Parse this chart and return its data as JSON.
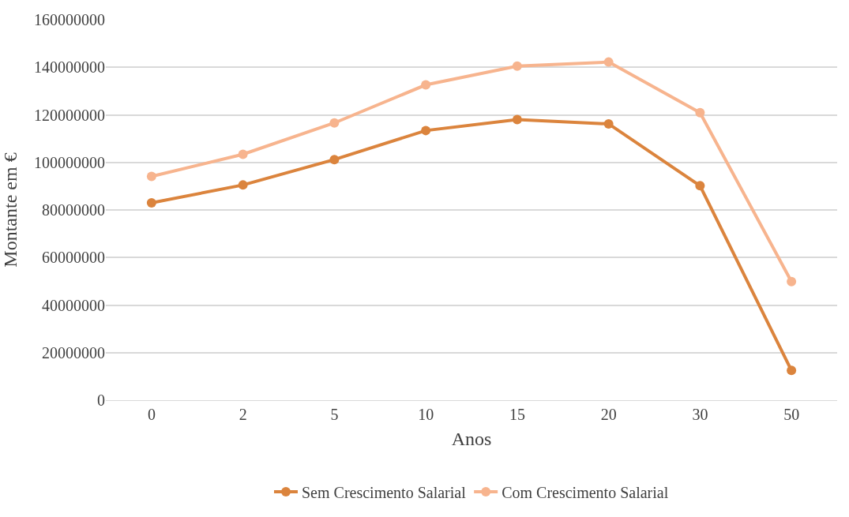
{
  "chart_data": {
    "type": "line",
    "xlabel": "Anos",
    "ylabel": "Montante em €",
    "categories": [
      "0",
      "2",
      "5",
      "10",
      "15",
      "20",
      "30",
      "50"
    ],
    "series": [
      {
        "name": "Sem Crescimento Salarial",
        "color": "#db843d",
        "values": [
          83000000,
          90500000,
          101200000,
          113400000,
          118000000,
          116200000,
          90200000,
          12500000
        ]
      },
      {
        "name": "Com Crescimento Salarial",
        "color": "#f7b48e",
        "values": [
          94100000,
          103400000,
          116600000,
          132600000,
          140500000,
          142200000,
          120900000,
          49900000
        ]
      }
    ],
    "ylim": [
      0,
      160000000
    ],
    "yticks": [
      0,
      20000000,
      40000000,
      60000000,
      80000000,
      100000000,
      120000000,
      140000000,
      160000000
    ],
    "grid": "y",
    "legend": "bottom",
    "marker": "circle",
    "line_style": "solid"
  }
}
